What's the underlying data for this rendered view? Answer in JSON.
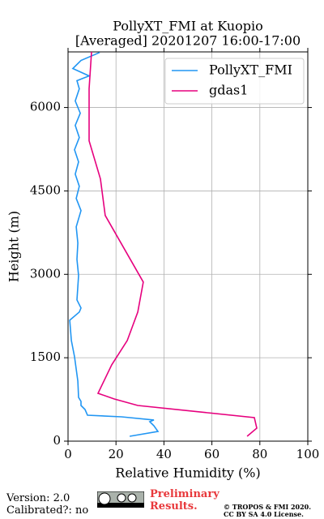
{
  "chart_data": {
    "type": "line",
    "title": "PollyXT_FMI at Kuopio",
    "subtitle": "[Averaged] 20201207 16:00-17:00",
    "x_label": "Relative Humidity (%)",
    "y_label": "Height (m)",
    "xlim": [
      0,
      100
    ],
    "ylim": [
      0,
      7000
    ],
    "xticks": [
      0,
      20,
      40,
      60,
      80,
      100
    ],
    "yticks": [
      0,
      1500,
      3000,
      4500,
      6000
    ],
    "grid": true,
    "legend": "upper right",
    "series": [
      {
        "name": "PollyXT_FMI",
        "color": "#2196f3",
        "x": [
          25.7,
          37.5,
          35.8,
          34.1,
          35.8,
          22.3,
          8.1,
          7.1,
          5.4,
          5.4,
          4.4,
          4.1,
          2.7,
          1.4,
          0.7,
          4.7,
          5.4,
          3.7,
          4.4,
          3.7,
          4.1,
          3.4,
          5.4,
          3.4,
          4.7,
          3.0,
          4.4,
          2.7,
          4.7,
          3.0,
          5.1,
          3.0,
          4.7,
          3.7,
          8.8,
          2.0,
          5.4,
          13.2
        ],
        "values": [
          88,
          175,
          277,
          350,
          380,
          438,
          467,
          569,
          642,
          715,
          788,
          1080,
          1518,
          1810,
          2175,
          2321,
          2394,
          2540,
          2978,
          3270,
          3562,
          3854,
          4146,
          4365,
          4584,
          4803,
          5022,
          5241,
          5460,
          5679,
          5898,
          6117,
          6336,
          6482,
          6569,
          6701,
          6847,
          6990
        ]
      },
      {
        "name": "gdas1",
        "color": "#e6007e",
        "x": [
          74.7,
          78.7,
          77.7,
          29.1,
          19.3,
          12.5,
          18.2,
          24.7,
          29.1,
          31.4,
          15.5,
          13.5,
          8.8,
          8.8,
          9.8
        ],
        "values": [
          88,
          234,
          423,
          642,
          759,
          861,
          1372,
          1810,
          2321,
          2861,
          4058,
          4715,
          5401,
          6336,
          7000
        ]
      }
    ]
  },
  "footer": {
    "version": "Version: 2.0",
    "calibrated": "Calibrated?: no",
    "preliminary": "Preliminary",
    "results": "Results.",
    "copyright": "© TROPOS & FMI 2020.",
    "license": "CC BY SA 4.0 License."
  }
}
